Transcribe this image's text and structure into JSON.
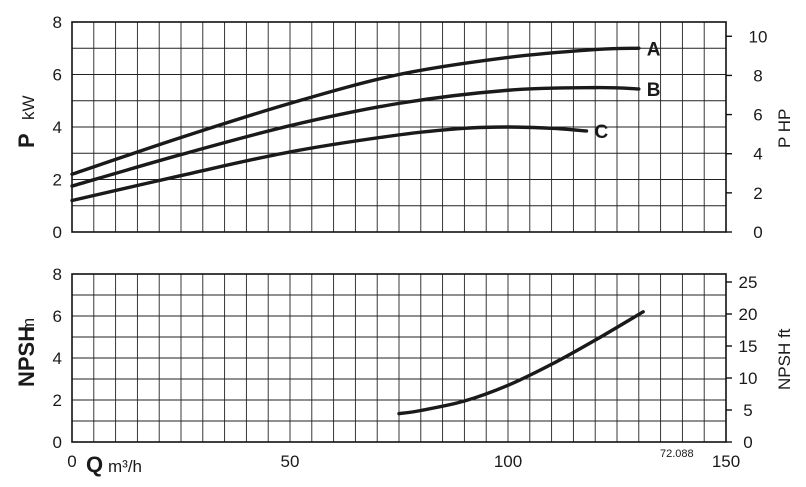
{
  "chart_data": [
    {
      "type": "line",
      "title": "",
      "xlabel": "Q m³/h",
      "ylabel": "P kW",
      "ylabel_right": "P HP",
      "xlim": [
        0,
        150
      ],
      "ylim": [
        0,
        8
      ],
      "ylim_right": [
        0,
        10.73
      ],
      "y_ticks": [
        0,
        2,
        4,
        6,
        8
      ],
      "y_ticks_right": [
        0,
        2,
        4,
        6,
        8,
        10
      ],
      "grid": true,
      "series": [
        {
          "name": "A",
          "x": [
            0,
            25,
            50,
            75,
            100,
            120,
            130
          ],
          "y": [
            2.2,
            3.6,
            4.9,
            6.0,
            6.65,
            6.95,
            7.0
          ]
        },
        {
          "name": "B",
          "x": [
            0,
            25,
            50,
            75,
            100,
            120,
            130
          ],
          "y": [
            1.75,
            2.95,
            4.05,
            4.9,
            5.4,
            5.5,
            5.45
          ]
        },
        {
          "name": "C",
          "x": [
            0,
            25,
            50,
            75,
            90,
            100,
            110,
            118
          ],
          "y": [
            1.2,
            2.15,
            3.05,
            3.7,
            3.95,
            4.0,
            3.95,
            3.85
          ]
        }
      ]
    },
    {
      "type": "line",
      "title": "",
      "xlabel": "Q m³/h",
      "ylabel": "NPSH m",
      "ylabel_right": "NPSH ft",
      "xlim": [
        0,
        150
      ],
      "ylim": [
        0,
        8
      ],
      "ylim_right": [
        0,
        26.25
      ],
      "x_ticks": [
        0,
        50,
        100,
        150
      ],
      "y_ticks": [
        0,
        2,
        4,
        6,
        8
      ],
      "y_ticks_right": [
        0,
        5,
        10,
        15,
        20,
        25
      ],
      "grid": true,
      "series": [
        {
          "x": [
            75,
            80,
            90,
            100,
            110,
            120,
            131
          ],
          "y": [
            1.35,
            1.5,
            1.95,
            2.7,
            3.7,
            4.85,
            6.2
          ]
        }
      ]
    }
  ],
  "labels": {
    "top_ylabel_symbol": "P",
    "top_ylabel_unit": "kW",
    "top_ylabel_right": "P HP",
    "bottom_ylabel_symbol": "NPSH",
    "bottom_ylabel_unit": "m",
    "bottom_ylabel_right": "NPSH ft",
    "xlabel_symbol": "Q",
    "xlabel_unit": "m³/h",
    "figure_code": "72.088"
  }
}
